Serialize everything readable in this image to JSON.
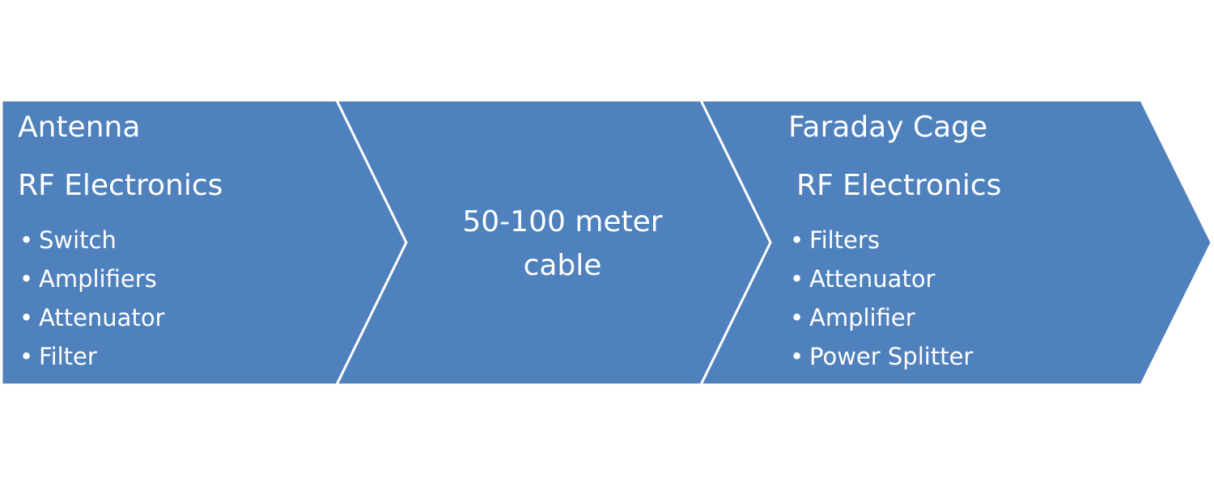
{
  "colors": {
    "chevron_fill": "#4f81bd",
    "chevron_border": "#ffffff",
    "text": "#ffffff",
    "background": "#ffffff"
  },
  "stage1": {
    "title": "Antenna",
    "subtitle": "RF Electronics",
    "items": [
      "Switch",
      "Amplifiers",
      "Attenuator",
      "Filter"
    ]
  },
  "stage2": {
    "lines": [
      "50-100 meter",
      "cable"
    ]
  },
  "stage3": {
    "title": "Faraday Cage",
    "subtitle": "RF Electronics",
    "items": [
      "Filters",
      "Attenuator",
      "Amplifier",
      "Power Splitter"
    ]
  }
}
